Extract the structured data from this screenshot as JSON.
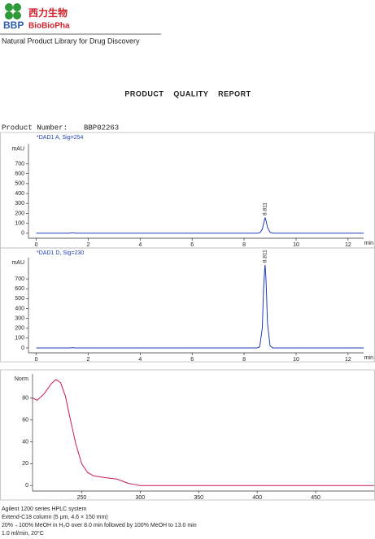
{
  "header": {
    "logo_abbr": "BBP",
    "logo_cn": "西力生物",
    "logo_en": "BioBioPha",
    "tagline": "Natural Product Library for Drug Discovery"
  },
  "report_title": "PRODUCT QUALITY REPORT",
  "product_number_label": "Product Number:",
  "product_number": "BBP02263",
  "chart_data": [
    {
      "type": "line",
      "title": "*DAD1 A, Sig=254",
      "y_label": "mAU",
      "x_label": "min",
      "color": "#1f3fb8",
      "x": [
        0,
        1.3,
        1.4,
        1.5,
        8.5,
        8.6,
        8.7,
        8.75,
        8.8,
        8.811,
        8.85,
        8.9,
        9.0,
        9.1,
        12.6
      ],
      "values": [
        0,
        0,
        6,
        0,
        0,
        3,
        40,
        95,
        150,
        155,
        120,
        60,
        10,
        0,
        0
      ],
      "xlim": [
        -0.3,
        12.6
      ],
      "ylim": [
        -50,
        900
      ],
      "xticks": [
        0,
        2,
        4,
        6,
        8,
        10,
        12
      ],
      "yticks": [
        0,
        100,
        200,
        300,
        400,
        500,
        600,
        700
      ],
      "annotations": [
        {
          "text": "8.811",
          "x": 8.811
        }
      ]
    },
    {
      "type": "line",
      "title": "*DAD1 D, Sig=230",
      "y_label": "mAU",
      "x_label": "min",
      "color": "#1f3fb8",
      "x": [
        0,
        1.3,
        1.4,
        1.5,
        8.5,
        8.6,
        8.7,
        8.75,
        8.8,
        8.811,
        8.85,
        8.9,
        9.0,
        9.1,
        12.6
      ],
      "values": [
        0,
        0,
        3,
        0,
        0,
        10,
        200,
        600,
        830,
        840,
        650,
        250,
        20,
        0,
        0
      ],
      "xlim": [
        -0.3,
        12.6
      ],
      "ylim": [
        -50,
        915
      ],
      "xticks": [
        0,
        2,
        4,
        6,
        8,
        10,
        12
      ],
      "yticks": [
        0,
        100,
        200,
        300,
        400,
        500,
        600,
        700
      ],
      "annotations": [
        {
          "text": "8.811",
          "x": 8.811
        }
      ]
    },
    {
      "type": "line",
      "y_label": "Norm",
      "color": "#c8185a",
      "x": [
        208,
        212,
        218,
        224,
        228,
        232,
        236,
        240,
        245,
        250,
        255,
        260,
        265,
        272,
        280,
        285,
        290,
        295,
        300,
        350,
        400,
        450,
        500
      ],
      "values": [
        80,
        78,
        84,
        93,
        97,
        94,
        82,
        62,
        38,
        20,
        12,
        9,
        8,
        7,
        6,
        4,
        2,
        1,
        0,
        0,
        0,
        0,
        0
      ],
      "xlim": [
        208,
        500
      ],
      "ylim": [
        -5,
        102
      ],
      "xticks": [
        250,
        300,
        350,
        400,
        450
      ],
      "yticks": [
        0,
        20,
        40,
        60,
        80
      ]
    }
  ],
  "footer": [
    "Agilent 1200 series HPLC system",
    "Extend-C18 column (5 μm, 4.6 × 150 mm)",
    "20%→100% MeOH in H₂O over 8.0 min followed by 100% MeOH to 13.0 min",
    "1.0 ml/min, 20°C"
  ]
}
